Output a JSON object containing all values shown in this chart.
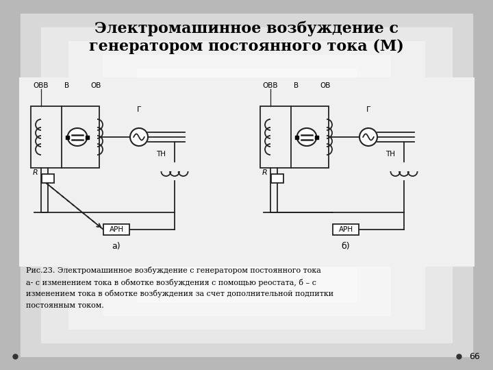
{
  "title_line1": "Электромашинное возбуждение с",
  "title_line2": "генератором постоянного тока (М)",
  "caption_line1": "Рис.23. Электромашинное возбуждение с генератором постоянного тока",
  "caption_line2": "а- с изменением тока в обмотке возбуждения с помощью реостата, б – с",
  "caption_line3": "изменением тока в обмотке возбуждения за счет дополнительной подпитки",
  "caption_line4": "постоянным током.",
  "label_a": "а)",
  "label_b": "б)",
  "slide_number": "66",
  "labels_top_a": [
    "ОВВ",
    "В",
    "ОВ"
  ],
  "labels_top_b": [
    "ОВВ",
    "В",
    "ОВ"
  ],
  "label_G_a": "Г",
  "label_G_b": "Г",
  "label_TN_a": "ТН",
  "label_TN_b": "ТН",
  "label_R_a": "R",
  "label_R_b": "R",
  "label_ARN_a": "АРН",
  "label_ARN_b": "АРН",
  "bg_outer": "#aaaaaa",
  "bg_inner": "#e0e0e0",
  "line_color": "#222222",
  "lw": 1.3
}
